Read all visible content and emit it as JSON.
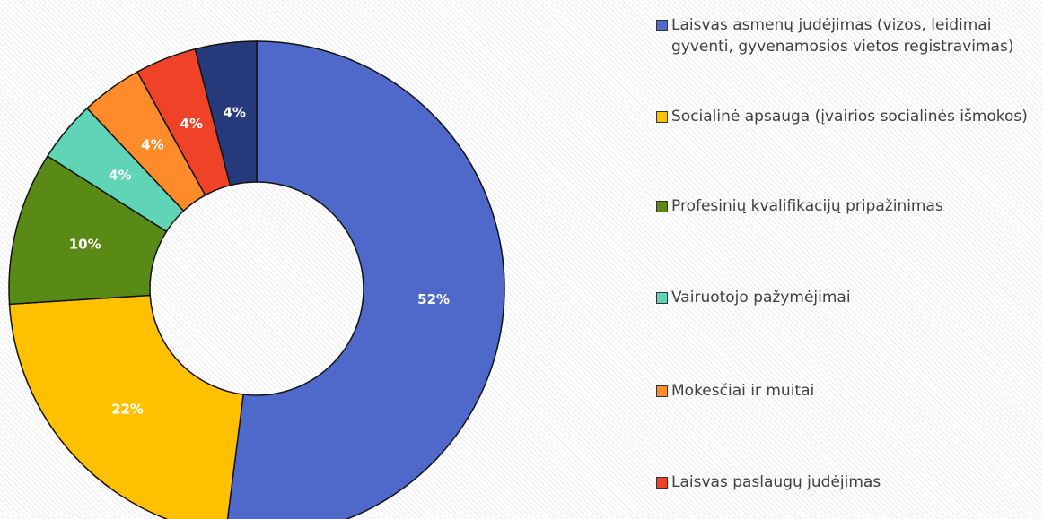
{
  "chart_data": {
    "type": "donut",
    "categories": [
      "Laisvas asmenų judėjimas (vizos, leidimai gyventi, gyvenamosios vietos registravimas)",
      "Socialinė apsauga (įvairios socialinės išmokos)",
      "Profesinių kvalifikacijų pripažinimas",
      "Vairuotojo pažymėjimai",
      "Mokesčiai ir muitai",
      "Laisvas paslaugų judėjimas",
      null
    ],
    "values": [
      52,
      22,
      10,
      4,
      4,
      4,
      4
    ],
    "value_labels": [
      "52%",
      "22%",
      "10%",
      "4%",
      "4%",
      "4%",
      "4%"
    ],
    "colors": [
      "#4f69cb",
      "#ffc000",
      "#5a8a16",
      "#5fd4b6",
      "#ff8b2b",
      "#ef4226",
      "#273b7c"
    ]
  }
}
